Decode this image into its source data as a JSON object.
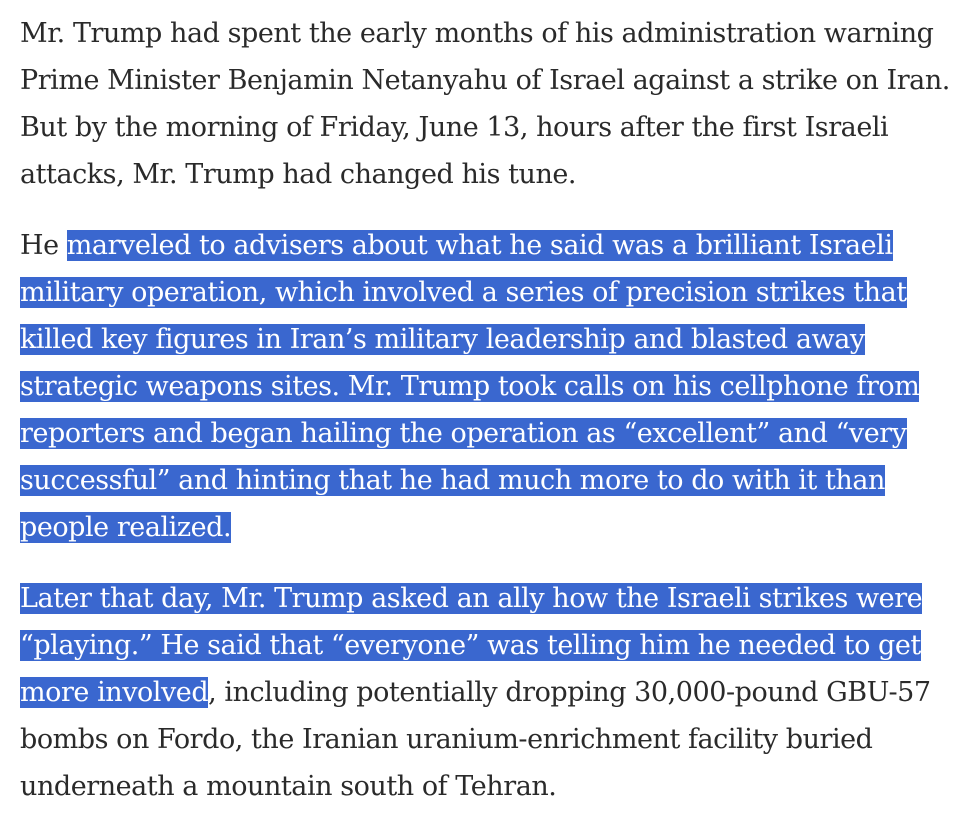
{
  "article": {
    "paragraph_1": "Mr. Trump had spent the early months of his administration warning Prime Minister Benjamin Netanyahu of Israel against a strike on Iran. But by the morning of Friday, June 13, hours after the first Israeli attacks, Mr. Trump had changed his tune.",
    "paragraph_2_lead": "He ",
    "paragraph_2_selected": "marveled to advisers about what he said was a brilliant Israeli military operation, which involved a series of precision strikes that killed key figures in Iran’s military leadership and blasted away strategic weapons sites. Mr. Trump took calls on his cellphone from reporters and began hailing the operation as “excellent” and “very successful” and hinting that he had much more to do with it than people realized.",
    "paragraph_3_selected": "Later that day, Mr. Trump asked an ally how the Israeli strikes were “playing.” He said that “everyone” was telling him he needed to get more involved",
    "paragraph_3_rest": ", including potentially dropping 30,000-pound GBU-57 bombs on Fordo, the Iranian uranium-enrichment facility buried underneath a mountain south of Tehran."
  },
  "colors": {
    "text": "#2a2a2a",
    "selection_background": "#3a67cf",
    "selection_text": "#ffffff",
    "page_background": "#ffffff"
  }
}
